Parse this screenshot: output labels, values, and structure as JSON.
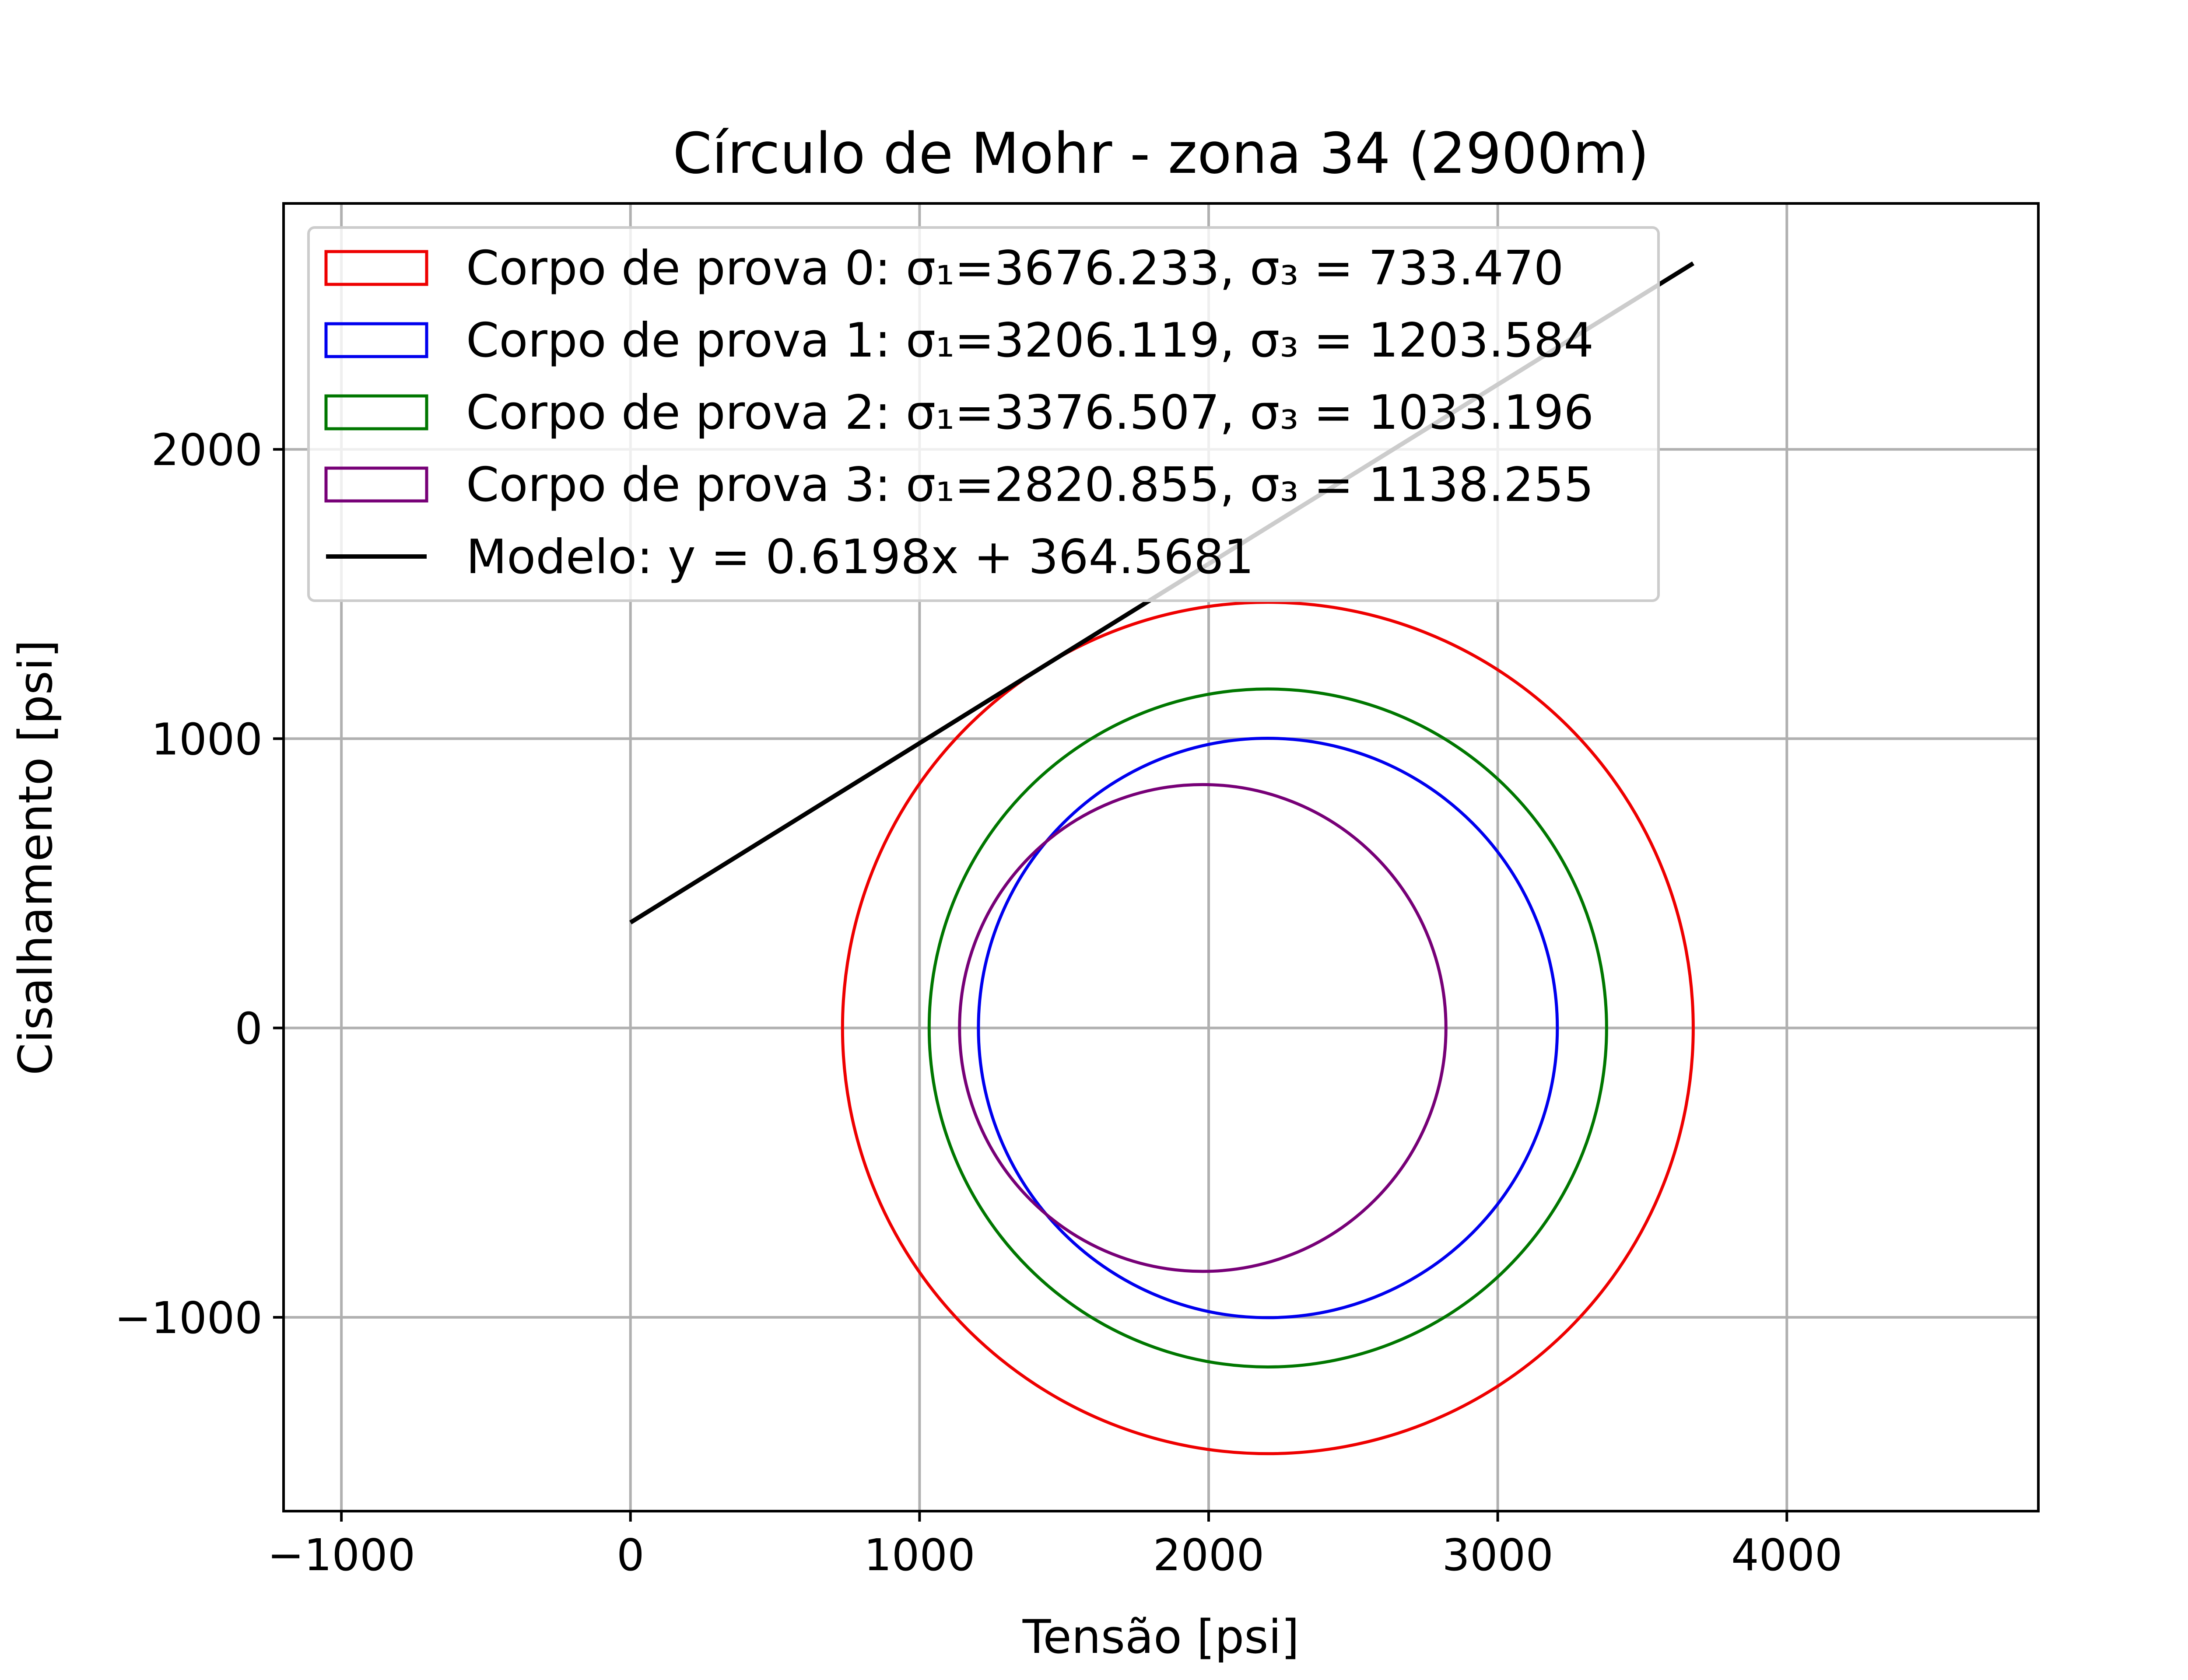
{
  "chart_data": {
    "type": "line",
    "title": "Círculo de Mohr - zona 34 (2900m)",
    "xlabel": "Tensão [psi]",
    "ylabel": "Cisalhamento [psi]",
    "xlim": [
      -1200,
      4870
    ],
    "ylim": [
      -1670,
      2850
    ],
    "xticks": [
      -1000,
      0,
      1000,
      2000,
      3000,
      4000
    ],
    "yticks": [
      -1000,
      0,
      1000,
      2000
    ],
    "xtick_labels": [
      "−1000",
      "0",
      "1000",
      "2000",
      "3000",
      "4000"
    ],
    "ytick_labels": [
      "−1000",
      "0",
      "1000",
      "2000"
    ],
    "grid": true,
    "legend_position": "upper-left",
    "circles": [
      {
        "name": "Corpo de prova 0: σ₁=3676.233, σ₃ = 733.470",
        "sigma1": 3676.233,
        "sigma3": 733.47,
        "color": "#ee0000"
      },
      {
        "name": "Corpo de prova 1: σ₁=3206.119, σ₃ = 1203.584",
        "sigma1": 3206.119,
        "sigma3": 1203.584,
        "color": "#0000ee"
      },
      {
        "name": "Corpo de prova 2: σ₁=3376.507, σ₃ = 1033.196",
        "sigma1": 3376.507,
        "sigma3": 1033.196,
        "color": "#007700"
      },
      {
        "name": "Corpo de prova 3: σ₁=2820.855, σ₃ = 1138.255",
        "sigma1": 2820.855,
        "sigma3": 1138.255,
        "color": "#770077"
      }
    ],
    "model": {
      "name": "Modelo: y = 0.6198x + 364.5681",
      "slope": 0.6198,
      "intercept": 364.5681,
      "x_range": [
        0,
        3676.233
      ],
      "color": "#000000"
    }
  }
}
